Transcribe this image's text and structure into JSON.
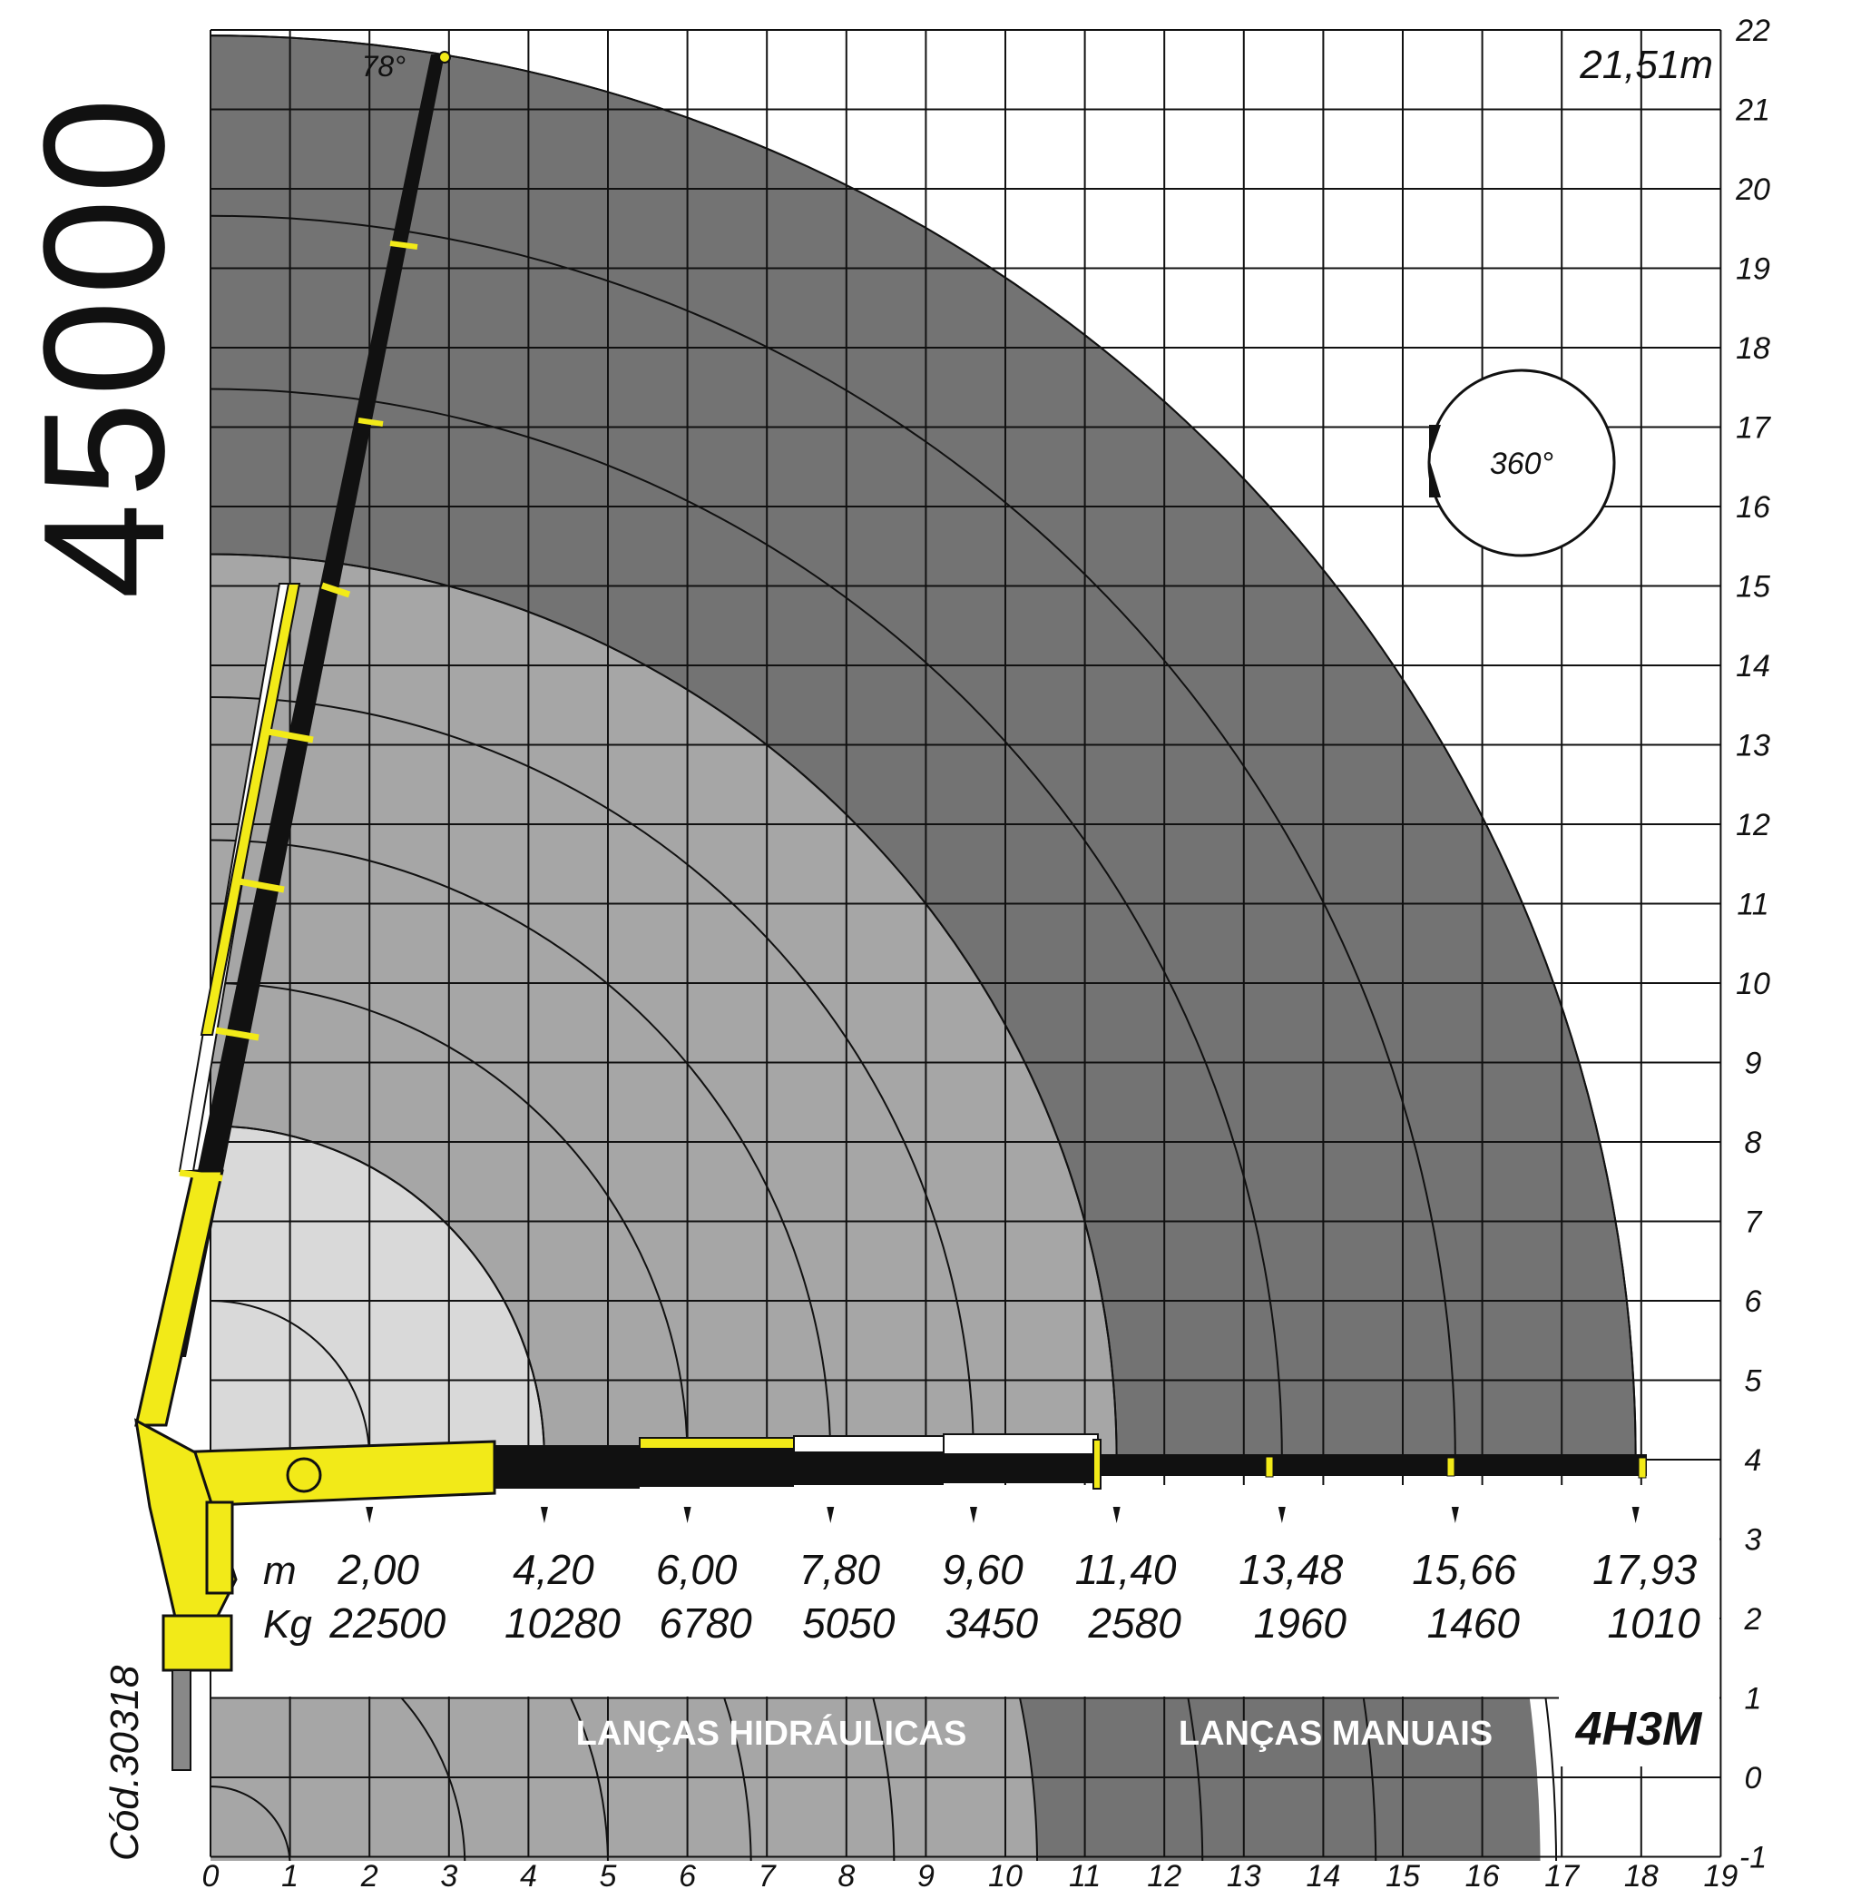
{
  "model_number": "45000",
  "code": "Cód.30318",
  "max_height_label": "21,51m",
  "boom_angle": "78°",
  "rotation": "360°",
  "model_code": "4H3M",
  "section_hydraulic": "LANÇAS HIDRÁULICAS",
  "section_manual": "LANÇAS MANUAIS",
  "unit_distance": "m",
  "unit_weight": "Kg",
  "colors": {
    "zone_light": "#d9d9d9",
    "zone_mid": "#a6a6a6",
    "zone_dark": "#737373",
    "boom_yellow": "#f2ea18",
    "boom_black": "#111111"
  },
  "chart_data": {
    "type": "load-chart",
    "x_ticks": [
      "0",
      "1",
      "2",
      "3",
      "4",
      "5",
      "6",
      "7",
      "8",
      "9",
      "10",
      "11",
      "12",
      "13",
      "14",
      "15",
      "16",
      "17",
      "18",
      "19"
    ],
    "y_ticks": [
      "22",
      "21",
      "20",
      "19",
      "18",
      "17",
      "16",
      "15",
      "14",
      "13",
      "12",
      "11",
      "10",
      "9",
      "8",
      "7",
      "6",
      "5",
      "4",
      "3",
      "2",
      "1",
      "0",
      "-1"
    ],
    "xlim": [
      0,
      19
    ],
    "ylim": [
      -1,
      22
    ],
    "loads": [
      {
        "reach": "2,00",
        "kg": "22500",
        "r": 2.0
      },
      {
        "reach": "4,20",
        "kg": "10280",
        "r": 4.2
      },
      {
        "reach": "6,00",
        "kg": "6780",
        "r": 6.0
      },
      {
        "reach": "7,80",
        "kg": "5050",
        "r": 7.8
      },
      {
        "reach": "9,60",
        "kg": "3450",
        "r": 9.6
      },
      {
        "reach": "11,40",
        "kg": "2580",
        "r": 11.4
      },
      {
        "reach": "13,48",
        "kg": "1960",
        "r": 13.48
      },
      {
        "reach": "15,66",
        "kg": "1460",
        "r": 15.66
      },
      {
        "reach": "17,93",
        "kg": "1010",
        "r": 17.93
      }
    ],
    "max_height": 21.51
  }
}
